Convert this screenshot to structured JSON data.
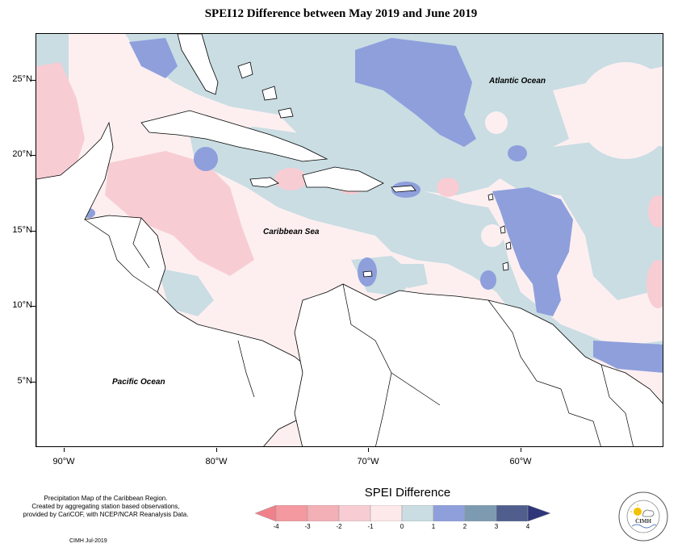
{
  "title": "SPEI12 Difference between May 2019 and June 2019",
  "map": {
    "labels": {
      "atlantic": "Atlantic Ocean",
      "caribbean": "Caribbean Sea",
      "pacific": "Pacific Ocean"
    },
    "lat_ticks": [
      "25°N",
      "20°N",
      "15°N",
      "10°N",
      "5°N"
    ],
    "lon_ticks": [
      "90°W",
      "80°W",
      "70°W",
      "60°W"
    ],
    "colors": {
      "neg4": "#f0808a",
      "neg3": "#f3b0b6",
      "neg2": "#f7cdd3",
      "neg1": "#fde9ea",
      "pos0": "#c9dde3",
      "pos1": "#8e9fdc",
      "pos2": "#7d9bb0",
      "pos3": "#4f5e8c",
      "pos4": "#2e3578"
    }
  },
  "legend": {
    "title": "SPEI Difference",
    "ticks": [
      "-4",
      "-3",
      "-2",
      "-1",
      "0",
      "1",
      "2",
      "3",
      "4"
    ]
  },
  "credits": {
    "line1": "Precipitation Map of the Caribbean Region.",
    "line2": "Created by aggregating station based observations,",
    "line3": "provided by CariCOF, with NCEP/NCAR Reanalysis Data.",
    "date": "CIMH Jul-2019"
  },
  "logo": {
    "name": "CIMH"
  }
}
